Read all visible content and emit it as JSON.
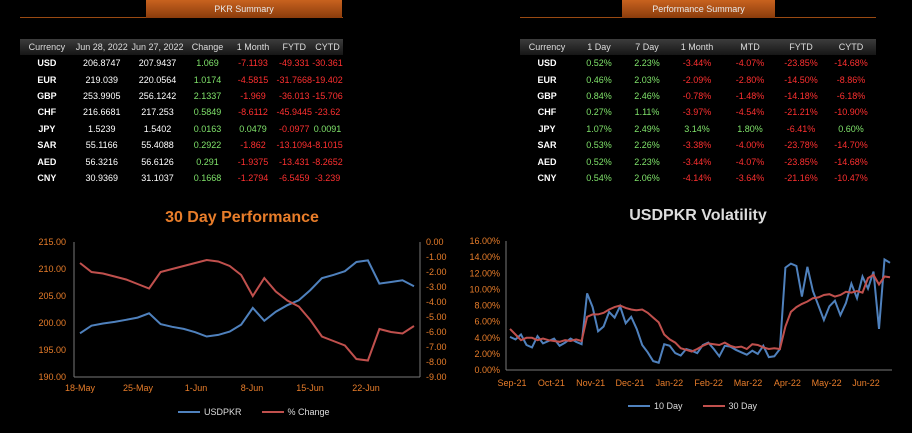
{
  "pkr_summary": {
    "title": "PKR Summary",
    "headers": [
      "Currency",
      "Jun 28, 2022",
      "Jun 27, 2022",
      "Change",
      "1 Month",
      "FYTD",
      "CYTD"
    ],
    "rows": [
      [
        "USD",
        "206.8747",
        "207.9437",
        "1.069",
        "-7.1193",
        "-49.331",
        "-30.361"
      ],
      [
        "EUR",
        "219.039",
        "220.0564",
        "1.0174",
        "-4.5815",
        "-31.7668",
        "-19.402"
      ],
      [
        "GBP",
        "253.9905",
        "256.1242",
        "2.1337",
        "-1.969",
        "-36.013",
        "-15.706"
      ],
      [
        "CHF",
        "216.6681",
        "217.253",
        "0.5849",
        "-8.6112",
        "-45.9445",
        "-23.62"
      ],
      [
        "JPY",
        "1.5239",
        "1.5402",
        "0.0163",
        "0.0479",
        "-0.0977",
        "0.0091"
      ],
      [
        "SAR",
        "55.1166",
        "55.4088",
        "0.2922",
        "-1.862",
        "-13.1094",
        "-8.1015"
      ],
      [
        "AED",
        "56.3216",
        "56.6126",
        "0.291",
        "-1.9375",
        "-13.431",
        "-8.2652"
      ],
      [
        "CNY",
        "30.9369",
        "31.1037",
        "0.1668",
        "-1.2794",
        "-6.5459",
        "-3.239"
      ]
    ]
  },
  "performance_summary": {
    "title": "Performance Summary",
    "headers": [
      "Currency",
      "1 Day",
      "7 Day",
      "1 Month",
      "MTD",
      "FYTD",
      "CYTD"
    ],
    "rows": [
      [
        "USD",
        "0.52%",
        "2.23%",
        "-3.44%",
        "-4.07%",
        "-23.85%",
        "-14.68%"
      ],
      [
        "EUR",
        "0.46%",
        "2.03%",
        "-2.09%",
        "-2.80%",
        "-14.50%",
        "-8.86%"
      ],
      [
        "GBP",
        "0.84%",
        "2.46%",
        "-0.78%",
        "-1.48%",
        "-14.18%",
        "-6.18%"
      ],
      [
        "CHF",
        "0.27%",
        "1.11%",
        "-3.97%",
        "-4.54%",
        "-21.21%",
        "-10.90%"
      ],
      [
        "JPY",
        "1.07%",
        "2.49%",
        "3.14%",
        "1.80%",
        "-6.41%",
        "0.60%"
      ],
      [
        "SAR",
        "0.53%",
        "2.26%",
        "-3.38%",
        "-4.00%",
        "-23.78%",
        "-14.70%"
      ],
      [
        "AED",
        "0.52%",
        "2.23%",
        "-3.44%",
        "-4.07%",
        "-23.85%",
        "-14.68%"
      ],
      [
        "CNY",
        "0.54%",
        "2.06%",
        "-4.14%",
        "-3.64%",
        "-21.16%",
        "-10.47%"
      ]
    ]
  },
  "colors": {
    "orange": "#e87d2a",
    "blue": "#4f81bd",
    "red": "#c0504d",
    "green": "#7fe26a",
    "neg_red": "#ff3030"
  },
  "chart_data": [
    {
      "type": "line",
      "title": "30 Day Performance",
      "x_ticks": [
        "18-May",
        "25-May",
        "1-Jun",
        "8-Jun",
        "15-Jun",
        "22-Jun"
      ],
      "y_ticks": [
        "215.00",
        "210.00",
        "205.00",
        "200.00",
        "195.00",
        "190.00"
      ],
      "y2_ticks": [
        "0.00",
        "-1.00",
        "-2.00",
        "-3.00",
        "-4.00",
        "-5.00",
        "-6.00",
        "-7.00",
        "-8.00",
        "-9.00"
      ],
      "ylim": [
        190,
        215
      ],
      "y2lim": [
        -9,
        0
      ],
      "legend": [
        "USDPKR",
        "% Change"
      ],
      "series": [
        {
          "name": "USDPKR",
          "axis": "left",
          "values": [
            198.1,
            199.5,
            199.9,
            200.2,
            200.6,
            201.0,
            201.8,
            199.8,
            199.3,
            198.9,
            198.3,
            197.5,
            197.8,
            198.4,
            199.7,
            202.8,
            200.4,
            202.1,
            203.3,
            204.2,
            206.1,
            208.3,
            208.9,
            209.6,
            211.3,
            211.6,
            207.3,
            207.6,
            207.9,
            206.8
          ]
        },
        {
          "name": "% Change",
          "axis": "right",
          "values": [
            -1.4,
            -2.0,
            -2.1,
            -2.3,
            -2.5,
            -2.8,
            -3.1,
            -2.0,
            -1.8,
            -1.6,
            -1.4,
            -1.2,
            -1.3,
            -1.6,
            -2.2,
            -3.6,
            -2.4,
            -3.3,
            -3.9,
            -4.3,
            -5.2,
            -6.3,
            -6.6,
            -6.9,
            -7.8,
            -7.9,
            -5.8,
            -6.0,
            -6.1,
            -5.6
          ]
        }
      ]
    },
    {
      "type": "line",
      "title": "USDPKR Volatility",
      "x_ticks": [
        "Sep-21",
        "Oct-21",
        "Nov-21",
        "Dec-21",
        "Jan-22",
        "Feb-22",
        "Mar-22",
        "Apr-22",
        "May-22",
        "Jun-22"
      ],
      "y_ticks": [
        "16.00%",
        "14.00%",
        "12.00%",
        "10.00%",
        "8.00%",
        "6.00%",
        "4.00%",
        "2.00%",
        "0.00%"
      ],
      "ylim": [
        0,
        16
      ],
      "legend": [
        "10 Day",
        "30 Day"
      ],
      "series": [
        {
          "name": "10 Day",
          "values": [
            4.1,
            3.8,
            4.4,
            3.1,
            2.8,
            4.2,
            3.3,
            3.6,
            3.9,
            3.0,
            3.4,
            3.9,
            3.5,
            3.2,
            9.5,
            7.8,
            4.8,
            5.4,
            7.2,
            6.5,
            7.9,
            5.8,
            6.6,
            5.1,
            3.1,
            2.2,
            1.1,
            0.9,
            3.2,
            3.0,
            2.1,
            1.8,
            2.6,
            2.4,
            2.1,
            3.1,
            3.4,
            2.6,
            1.7,
            3.0,
            2.9,
            2.5,
            2.2,
            1.9,
            2.4,
            2.0,
            3.0,
            1.6,
            1.7,
            2.6,
            12.7,
            13.2,
            12.9,
            9.1,
            12.8,
            9.8,
            8.0,
            6.2,
            7.9,
            8.6,
            6.8,
            8.3,
            10.7,
            8.9,
            11.6,
            10.1,
            12.2,
            5.1,
            13.7,
            13.3
          ]
        },
        {
          "name": "30 Day",
          "values": [
            5.1,
            4.4,
            3.7,
            4.0,
            4.0,
            3.7,
            3.9,
            3.7,
            3.6,
            3.5,
            3.7,
            3.6,
            3.8,
            3.6,
            6.6,
            6.9,
            6.9,
            7.1,
            7.5,
            7.8,
            8.0,
            7.7,
            7.5,
            7.4,
            7.5,
            7.1,
            6.5,
            5.9,
            4.4,
            3.8,
            3.4,
            2.7,
            2.5,
            2.3,
            2.6,
            3.0,
            3.3,
            3.2,
            3.1,
            3.4,
            3.0,
            2.8,
            2.9,
            2.6,
            3.2,
            3.1,
            2.8,
            2.6,
            2.7,
            2.6,
            5.4,
            7.2,
            7.8,
            8.2,
            8.5,
            8.9,
            9.0,
            9.3,
            9.4,
            9.1,
            9.3,
            9.7,
            9.6,
            9.8,
            9.6,
            11.4,
            11.8,
            10.6,
            11.6,
            11.5
          ]
        }
      ]
    }
  ]
}
